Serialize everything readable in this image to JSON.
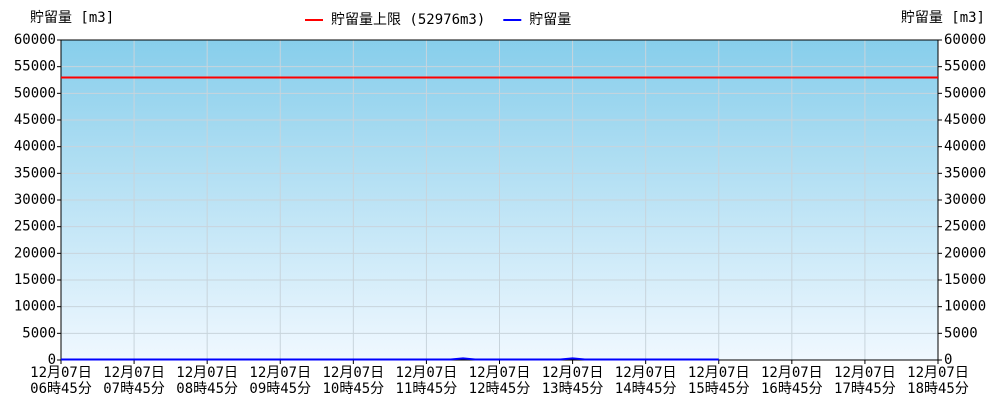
{
  "chart_data": {
    "type": "line",
    "y_axis_label": "貯留量 [m3]",
    "y2_axis_label": "貯留量 [m3]",
    "categories": [
      [
        "12月07日",
        "06時45分"
      ],
      [
        "12月07日",
        "07時45分"
      ],
      [
        "12月07日",
        "08時45分"
      ],
      [
        "12月07日",
        "09時45分"
      ],
      [
        "12月07日",
        "10時45分"
      ],
      [
        "12月07日",
        "11時45分"
      ],
      [
        "12月07日",
        "12時45分"
      ],
      [
        "12月07日",
        "13時45分"
      ],
      [
        "12月07日",
        "14時45分"
      ],
      [
        "12月07日",
        "15時45分"
      ],
      [
        "12月07日",
        "16時45分"
      ],
      [
        "12月07日",
        "17時45分"
      ],
      [
        "12月07日",
        "18時45分"
      ]
    ],
    "xlim": [
      "06:45",
      "18:45"
    ],
    "ylim": [
      0,
      60000
    ],
    "yticks": [
      0,
      5000,
      10000,
      15000,
      20000,
      25000,
      30000,
      35000,
      40000,
      45000,
      50000,
      55000,
      60000
    ],
    "y2lim": [
      0,
      60000
    ],
    "y2ticks": [
      0,
      5000,
      10000,
      15000,
      20000,
      25000,
      30000,
      35000,
      40000,
      45000,
      50000,
      55000,
      60000
    ],
    "grid": true,
    "legend": "top",
    "series": [
      {
        "name": "貯留量上限 (52976m3)",
        "color": "#ff0000",
        "x": [
          "06:45",
          "18:45"
        ],
        "values": [
          52976,
          52976
        ]
      },
      {
        "name": "貯留量",
        "color": "#0000ff",
        "x": [
          "06:45",
          "06:55",
          "07:05",
          "07:15",
          "07:25",
          "07:35",
          "07:45",
          "07:55",
          "08:05",
          "08:15",
          "08:25",
          "08:35",
          "08:45",
          "08:55",
          "09:05",
          "09:15",
          "09:25",
          "09:35",
          "09:45",
          "09:55",
          "10:05",
          "10:15",
          "10:25",
          "10:35",
          "10:45",
          "10:55",
          "11:05",
          "11:15",
          "11:25",
          "11:35",
          "11:45",
          "11:55",
          "12:05",
          "12:15",
          "12:25",
          "12:35",
          "12:45",
          "12:55",
          "13:05",
          "13:15",
          "13:25",
          "13:35",
          "13:45",
          "13:55",
          "14:05",
          "14:15",
          "14:25",
          "14:35",
          "14:45",
          "14:55",
          "15:05",
          "15:15",
          "15:25",
          "15:35",
          "15:45"
        ],
        "values": [
          100,
          100,
          100,
          100,
          100,
          100,
          100,
          100,
          100,
          100,
          100,
          100,
          100,
          100,
          100,
          100,
          100,
          100,
          100,
          100,
          100,
          100,
          100,
          100,
          100,
          100,
          100,
          100,
          100,
          100,
          100,
          100,
          100,
          300,
          100,
          100,
          100,
          100,
          100,
          100,
          100,
          100,
          300,
          100,
          100,
          100,
          100,
          100,
          100,
          100,
          100,
          100,
          100,
          100,
          100
        ]
      }
    ]
  }
}
